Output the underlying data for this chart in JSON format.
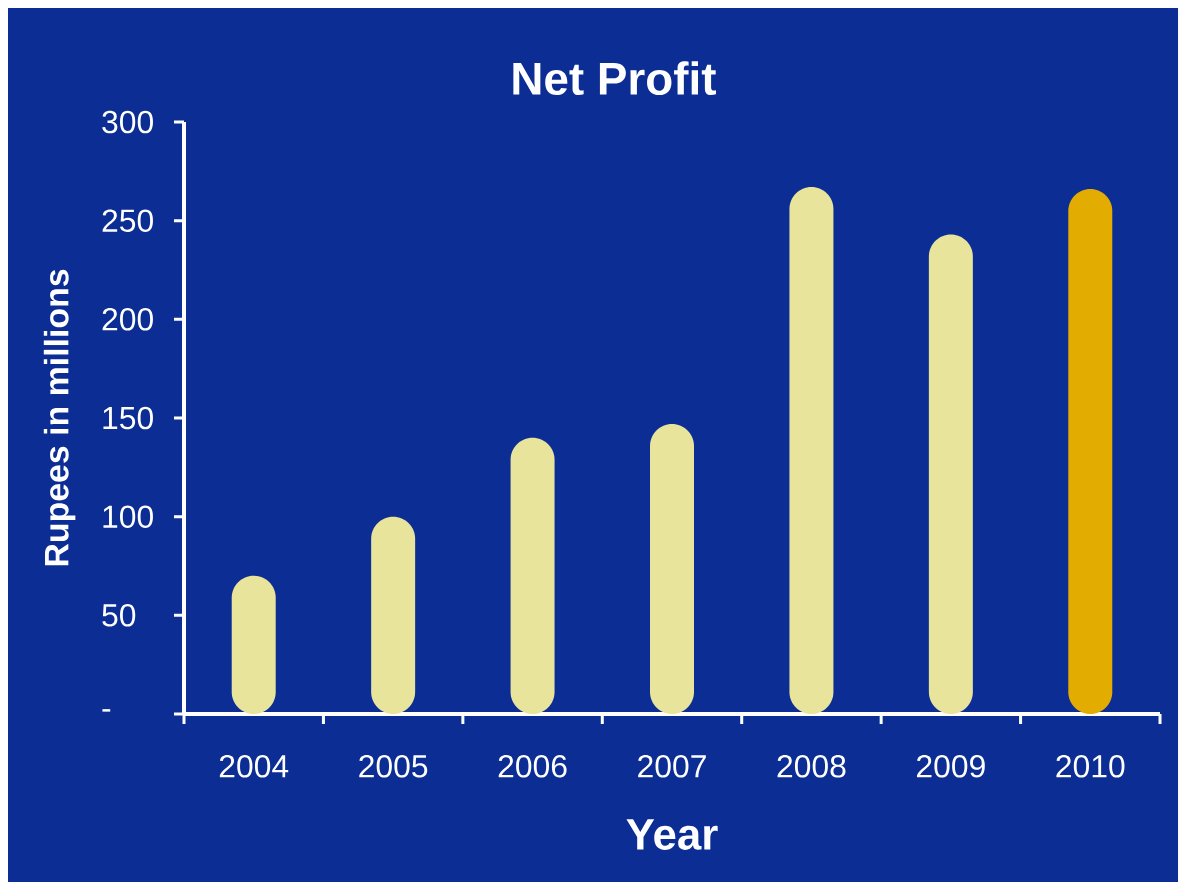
{
  "chart_data": {
    "type": "bar",
    "title": "Net Profit",
    "xlabel": "Year",
    "ylabel": "Rupees in millions",
    "categories": [
      "2004",
      "2005",
      "2006",
      "2007",
      "2008",
      "2009",
      "2010"
    ],
    "values": [
      70,
      100,
      140,
      147,
      267,
      243,
      266
    ],
    "colors": [
      "#e8e49b",
      "#e8e49b",
      "#e8e49b",
      "#e8e49b",
      "#e8e49b",
      "#e8e49b",
      "#e3ac00"
    ],
    "ylim": [
      0,
      300
    ],
    "yticks": [
      {
        "value": 0,
        "label": "-"
      },
      50,
      100,
      150,
      200,
      250,
      300
    ]
  }
}
